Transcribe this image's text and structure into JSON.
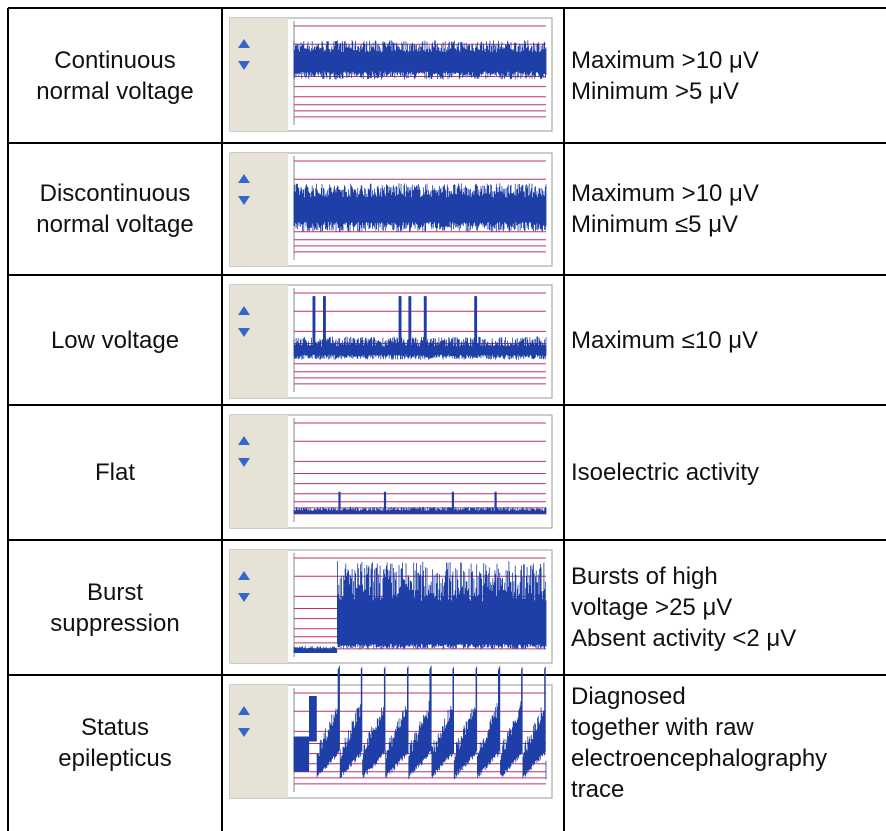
{
  "table": {
    "rows": [
      {
        "label": [
          "Continuous",
          "normal voltage"
        ],
        "criteria": [
          "Maximum >10 μV",
          "Minimum >5 μV"
        ]
      },
      {
        "label": [
          "Discontinuous",
          "normal voltage"
        ],
        "criteria": [
          "Maximum >10 μV",
          "Minimum ≤5 μV"
        ]
      },
      {
        "label": [
          "Low voltage"
        ],
        "criteria": [
          "Maximum ≤10 μV"
        ]
      },
      {
        "label": [
          "Flat"
        ],
        "criteria": [
          "Isoelectric activity"
        ]
      },
      {
        "label": [
          "Burst",
          "suppression"
        ],
        "criteria": [
          "Bursts of high",
          "voltage >25 μV",
          "Absent activity <2 μV"
        ]
      },
      {
        "label": [
          "Status",
          "epilepticus"
        ],
        "criteria": [
          "Diagnosed",
          "together with raw",
          "electroencephalography",
          "trace"
        ]
      }
    ]
  }
}
